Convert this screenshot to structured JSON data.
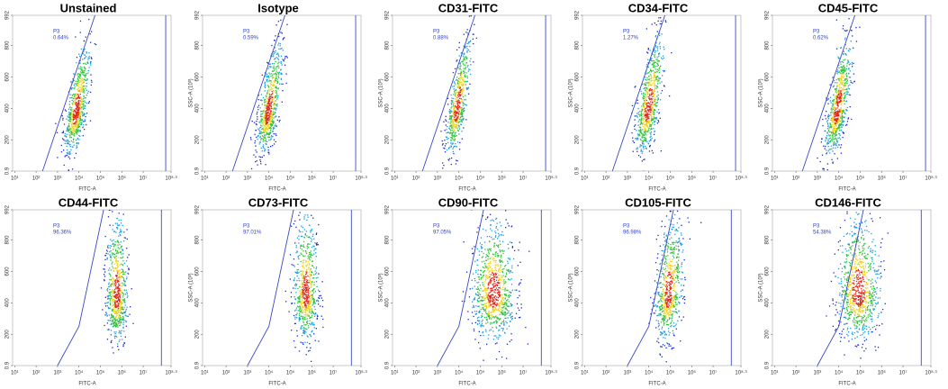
{
  "chart_data": [
    {
      "type": "scatter",
      "title": "Unstained",
      "gate_name": "P3",
      "gate_percent": "0.64%",
      "xlabel": "FITC-A",
      "log_x": true,
      "xlim": [
        8,
        199526231
      ],
      "xticks": [
        {
          "value": 10,
          "label": "10¹"
        },
        {
          "value": 100,
          "label": "10²"
        },
        {
          "value": 1000,
          "label": "10³"
        },
        {
          "value": 10000,
          "label": "10⁴"
        },
        {
          "value": 100000,
          "label": "10⁵"
        },
        {
          "value": 1000000,
          "label": "10⁶"
        },
        {
          "value": 10000000,
          "label": "10⁷"
        },
        {
          "value": 199526231,
          "label": "10⁸·³"
        }
      ],
      "ylim": [
        0.9,
        992
      ],
      "yticks": [
        0.9,
        200,
        400,
        600,
        800,
        992
      ]
    },
    {
      "type": "scatter",
      "title": "Isotype",
      "gate_name": "P3",
      "gate_percent": "0.59%",
      "xlabel": "FITC-A",
      "ylabel": "SSC-A (10³)",
      "log_x": true,
      "xlim": [
        8,
        199526231
      ],
      "xticks": [
        {
          "value": 10,
          "label": "10¹"
        },
        {
          "value": 100,
          "label": "10²"
        },
        {
          "value": 1000,
          "label": "10³"
        },
        {
          "value": 10000,
          "label": "10⁴"
        },
        {
          "value": 100000,
          "label": "10⁵"
        },
        {
          "value": 1000000,
          "label": "10⁶"
        },
        {
          "value": 10000000,
          "label": "10⁷"
        },
        {
          "value": 199526231,
          "label": "10⁸·³"
        }
      ],
      "ylim": [
        0.9,
        992
      ],
      "yticks": [
        0.9,
        200,
        400,
        600,
        800,
        992
      ]
    },
    {
      "type": "scatter",
      "title": "CD31-FITC",
      "gate_name": "P3",
      "gate_percent": "0.88%",
      "xlabel": "FITC-A",
      "ylabel": "SSC-A (10³)",
      "log_x": true,
      "xlim": [
        8,
        199526231
      ],
      "xticks": [
        {
          "value": 10,
          "label": "10¹"
        },
        {
          "value": 100,
          "label": "10²"
        },
        {
          "value": 1000,
          "label": "10³"
        },
        {
          "value": 10000,
          "label": "10⁴"
        },
        {
          "value": 100000,
          "label": "10⁵"
        },
        {
          "value": 1000000,
          "label": "10⁶"
        },
        {
          "value": 10000000,
          "label": "10⁷"
        },
        {
          "value": 199526231,
          "label": "10⁸·³"
        }
      ],
      "ylim": [
        0.9,
        992
      ],
      "yticks": [
        0.9,
        200,
        400,
        600,
        800,
        992
      ]
    },
    {
      "type": "scatter",
      "title": "CD34-FITC",
      "gate_name": "P3",
      "gate_percent": "1.27%",
      "xlabel": "FITC-A",
      "ylabel": "SSC-A (10³)",
      "log_x": true,
      "xlim": [
        8,
        199526231
      ],
      "xticks": [
        {
          "value": 10,
          "label": "10¹"
        },
        {
          "value": 100,
          "label": "10²"
        },
        {
          "value": 1000,
          "label": "10³"
        },
        {
          "value": 10000,
          "label": "10⁴"
        },
        {
          "value": 100000,
          "label": "10⁵"
        },
        {
          "value": 1000000,
          "label": "10⁶"
        },
        {
          "value": 10000000,
          "label": "10⁷"
        },
        {
          "value": 199526231,
          "label": "10⁸·³"
        }
      ],
      "ylim": [
        0.9,
        992
      ],
      "yticks": [
        0.9,
        200,
        400,
        600,
        800,
        992
      ]
    },
    {
      "type": "scatter",
      "title": "CD45-FITC",
      "gate_name": "P3",
      "gate_percent": "0.62%",
      "xlabel": "FITC-A",
      "ylabel": "SSC-A (10³)",
      "log_x": true,
      "xlim": [
        8,
        199526231
      ],
      "xticks": [
        {
          "value": 10,
          "label": "10¹"
        },
        {
          "value": 100,
          "label": "10²"
        },
        {
          "value": 1000,
          "label": "10³"
        },
        {
          "value": 10000,
          "label": "10⁴"
        },
        {
          "value": 100000,
          "label": "10⁵"
        },
        {
          "value": 1000000,
          "label": "10⁶"
        },
        {
          "value": 10000000,
          "label": "10⁷"
        },
        {
          "value": 199526231,
          "label": "10⁸·³"
        }
      ],
      "ylim": [
        0.9,
        992
      ],
      "yticks": [
        0.9,
        200,
        400,
        600,
        800,
        992
      ]
    },
    {
      "type": "scatter",
      "title": "CD44-FITC",
      "gate_name": "P3",
      "gate_percent": "96.36%",
      "xlabel": "FITC-A",
      "log_x": true,
      "xlim": [
        8,
        199526231
      ],
      "xticks": [
        {
          "value": 10,
          "label": "10¹"
        },
        {
          "value": 100,
          "label": "10²"
        },
        {
          "value": 1000,
          "label": "10³"
        },
        {
          "value": 10000,
          "label": "10⁴"
        },
        {
          "value": 100000,
          "label": "10⁵"
        },
        {
          "value": 1000000,
          "label": "10⁶"
        },
        {
          "value": 10000000,
          "label": "10⁷"
        },
        {
          "value": 199526231,
          "label": "10⁸·³"
        }
      ],
      "ylim": [
        0.9,
        992
      ],
      "yticks": [
        0.9,
        200,
        400,
        600,
        800,
        992
      ]
    },
    {
      "type": "scatter",
      "title": "CD73-FITC",
      "gate_name": "P3",
      "gate_percent": "97.01%",
      "xlabel": "FITC-A",
      "ylabel": "SSC-A (10³)",
      "log_x": true,
      "xlim": [
        8,
        199526231
      ],
      "xticks": [
        {
          "value": 10,
          "label": "10¹"
        },
        {
          "value": 100,
          "label": "10²"
        },
        {
          "value": 1000,
          "label": "10³"
        },
        {
          "value": 10000,
          "label": "10⁴"
        },
        {
          "value": 100000,
          "label": "10⁵"
        },
        {
          "value": 1000000,
          "label": "10⁶"
        },
        {
          "value": 10000000,
          "label": "10⁷"
        },
        {
          "value": 199526231,
          "label": "10⁸·³"
        }
      ],
      "ylim": [
        0.9,
        992
      ],
      "yticks": [
        0.9,
        200,
        400,
        600,
        800,
        992
      ]
    },
    {
      "type": "scatter",
      "title": "CD90-FITC",
      "gate_name": "P3",
      "gate_percent": "97.05%",
      "xlabel": "FITC-A",
      "ylabel": "SSC-A (10³)",
      "log_x": true,
      "xlim": [
        8,
        199526231
      ],
      "xticks": [
        {
          "value": 10,
          "label": "10¹"
        },
        {
          "value": 100,
          "label": "10²"
        },
        {
          "value": 1000,
          "label": "10³"
        },
        {
          "value": 10000,
          "label": "10⁴"
        },
        {
          "value": 100000,
          "label": "10⁵"
        },
        {
          "value": 1000000,
          "label": "10⁶"
        },
        {
          "value": 10000000,
          "label": "10⁷"
        },
        {
          "value": 199526231,
          "label": "10⁸·³"
        }
      ],
      "ylim": [
        0.9,
        992
      ],
      "yticks": [
        0.9,
        200,
        400,
        600,
        800,
        992
      ]
    },
    {
      "type": "scatter",
      "title": "CD105-FITC",
      "gate_name": "P3",
      "gate_percent": "96.98%",
      "xlabel": "FITC-A",
      "ylabel": "SSC-A (10³)",
      "log_x": true,
      "xlim": [
        8,
        199526231
      ],
      "xticks": [
        {
          "value": 10,
          "label": "10¹"
        },
        {
          "value": 100,
          "label": "10²"
        },
        {
          "value": 1000,
          "label": "10³"
        },
        {
          "value": 10000,
          "label": "10⁴"
        },
        {
          "value": 100000,
          "label": "10⁵"
        },
        {
          "value": 1000000,
          "label": "10⁶"
        },
        {
          "value": 10000000,
          "label": "10⁷"
        },
        {
          "value": 199526231,
          "label": "10⁸·³"
        }
      ],
      "ylim": [
        0.9,
        992
      ],
      "yticks": [
        0.9,
        200,
        400,
        600,
        800,
        992
      ]
    },
    {
      "type": "scatter",
      "title": "CD146-FITC",
      "gate_name": "P3",
      "gate_percent": "54.38%",
      "xlabel": "FITC-A",
      "ylabel": "SSC-A (10³)",
      "log_x": true,
      "xlim": [
        8,
        199526231
      ],
      "xticks": [
        {
          "value": 10,
          "label": "10¹"
        },
        {
          "value": 100,
          "label": "10²"
        },
        {
          "value": 1000,
          "label": "10³"
        },
        {
          "value": 10000,
          "label": "10⁴"
        },
        {
          "value": 100000,
          "label": "10⁵"
        },
        {
          "value": 1000000,
          "label": "10⁶"
        },
        {
          "value": 10000000,
          "label": "10⁷"
        },
        {
          "value": 199526231,
          "label": "10⁸·³"
        }
      ],
      "ylim": [
        0.9,
        992
      ],
      "yticks": [
        0.9,
        200,
        400,
        600,
        800,
        992
      ]
    }
  ]
}
